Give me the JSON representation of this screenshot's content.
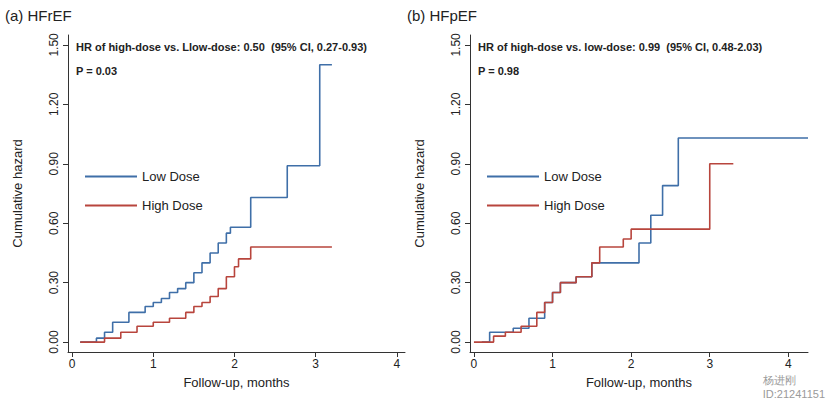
{
  "chart_data": [
    {
      "type": "line",
      "title": "(a) HFrEF",
      "annotations": [
        "HR of high-dose vs. Llow-dose: 0.50  (95% CI, 0.27-0.93)",
        "P = 0.03"
      ],
      "x_label": "Follow-up, months",
      "y_label": "Cumulative hazard",
      "xlim": [
        -0.05,
        4.1
      ],
      "xticks": [
        0,
        1,
        2,
        3,
        4
      ],
      "ylim": [
        -0.05,
        1.55
      ],
      "yticks": [
        {
          "value": 0,
          "label": "0.00"
        },
        {
          "value": 0.3,
          "label": "0.30"
        },
        {
          "value": 0.6,
          "label": "0.60"
        },
        {
          "value": 0.9,
          "label": "0.90"
        },
        {
          "value": 1.2,
          "label": "1.20"
        },
        {
          "value": 1.5,
          "label": "1.50"
        }
      ],
      "line_style": "step",
      "legend": "left",
      "grid": false,
      "series": [
        {
          "name": "Low Dose",
          "color": "#3f6fa8",
          "x": [
            0.1,
            0.3,
            0.4,
            0.5,
            0.7,
            0.9,
            1.0,
            1.1,
            1.2,
            1.3,
            1.4,
            1.5,
            1.6,
            1.7,
            1.8,
            1.9,
            1.95,
            2.2,
            2.65,
            3.05,
            3.2
          ],
          "values": [
            0,
            0.02,
            0.05,
            0.1,
            0.15,
            0.18,
            0.2,
            0.22,
            0.25,
            0.27,
            0.3,
            0.35,
            0.4,
            0.45,
            0.5,
            0.55,
            0.58,
            0.73,
            0.89,
            1.4,
            1.4
          ]
        },
        {
          "name": "High Dose",
          "color": "#b8453d",
          "x": [
            0.1,
            0.4,
            0.6,
            0.8,
            1.0,
            1.2,
            1.4,
            1.5,
            1.6,
            1.7,
            1.8,
            1.9,
            2.0,
            2.05,
            2.2,
            3.2
          ],
          "values": [
            0,
            0.02,
            0.05,
            0.08,
            0.1,
            0.12,
            0.15,
            0.18,
            0.2,
            0.23,
            0.27,
            0.33,
            0.38,
            0.42,
            0.48,
            0.48
          ]
        }
      ]
    },
    {
      "type": "line",
      "title": "(b) HFpEF",
      "annotations": [
        "HR of high-dose vs. low-dose: 0.99  (95% CI, 0.48-2.03)",
        "P = 0.98"
      ],
      "x_label": "Follow-up, months",
      "y_label": "Cumulative hazard",
      "xlim": [
        -0.05,
        4.25
      ],
      "xticks": [
        0,
        1,
        2,
        3,
        4
      ],
      "ylim": [
        -0.05,
        1.55
      ],
      "yticks": [
        {
          "value": 0,
          "label": "0.00"
        },
        {
          "value": 0.3,
          "label": "0.30"
        },
        {
          "value": 0.6,
          "label": "0.60"
        },
        {
          "value": 0.9,
          "label": "0.90"
        },
        {
          "value": 1.2,
          "label": "1.20"
        },
        {
          "value": 1.5,
          "label": "1.50"
        }
      ],
      "line_style": "step",
      "legend": "left",
      "grid": false,
      "series": [
        {
          "name": "Low Dose",
          "color": "#3f6fa8",
          "x": [
            0.1,
            0.2,
            0.5,
            0.7,
            0.9,
            1.0,
            1.1,
            1.3,
            1.5,
            2.1,
            2.25,
            2.4,
            2.6,
            4.25
          ],
          "values": [
            0,
            0.05,
            0.07,
            0.12,
            0.2,
            0.25,
            0.3,
            0.33,
            0.4,
            0.5,
            0.64,
            0.79,
            1.03,
            1.03
          ]
        },
        {
          "name": "High Dose",
          "color": "#b8453d",
          "x": [
            0.0,
            0.25,
            0.4,
            0.6,
            0.8,
            0.9,
            1.0,
            1.1,
            1.3,
            1.5,
            1.6,
            1.9,
            2.0,
            3.0,
            3.3
          ],
          "values": [
            0,
            0.03,
            0.05,
            0.08,
            0.15,
            0.2,
            0.25,
            0.3,
            0.33,
            0.4,
            0.48,
            0.52,
            0.57,
            0.9,
            0.9
          ]
        }
      ]
    }
  ],
  "watermark": [
    "杨进刚",
    "ID:21241151"
  ]
}
